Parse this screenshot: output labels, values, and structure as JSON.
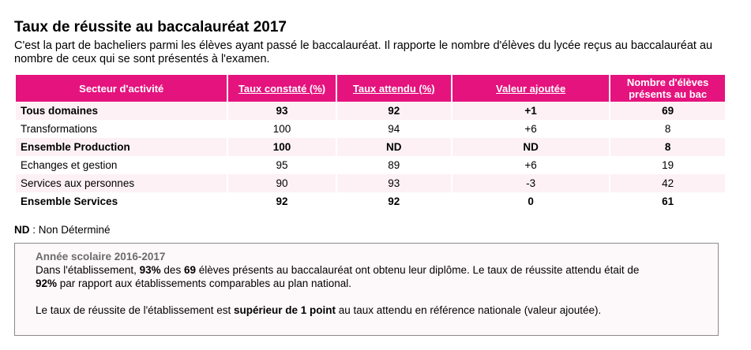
{
  "title": "Taux de réussite au baccalauréat 2017",
  "intro": "C'est la part de bacheliers parmi les élèves ayant passé le baccalauréat. Il rapporte le nombre d'élèves du lycée reçus au baccalauréat au nombre de ceux qui se sont présentés à l'examen.",
  "table": {
    "headers": {
      "sector": "Secteur d'activité",
      "rate_observed": "Taux constaté (%)",
      "rate_expected": "Taux attendu (%)",
      "added_value": "Valeur ajoutée",
      "students_line1": "Nombre d'élèves",
      "students_line2": "présents au bac"
    },
    "rows": [
      {
        "sector": "Tous domaines",
        "observed": "93",
        "expected": "92",
        "added": "+1",
        "students": "69"
      },
      {
        "sector": "Transformations",
        "observed": "100",
        "expected": "94",
        "added": "+6",
        "students": "8"
      },
      {
        "sector": "Ensemble Production",
        "observed": "100",
        "expected": "ND",
        "added": "ND",
        "students": "8"
      },
      {
        "sector": "Echanges et gestion",
        "observed": "95",
        "expected": "89",
        "added": "+6",
        "students": "19"
      },
      {
        "sector": "Services aux personnes",
        "observed": "90",
        "expected": "93",
        "added": "-3",
        "students": "42"
      },
      {
        "sector": "Ensemble Services",
        "observed": "92",
        "expected": "92",
        "added": "0",
        "students": "61"
      }
    ]
  },
  "legend": {
    "abbr": "ND",
    "text": " : Non Déterminé"
  },
  "info": {
    "year": "Année scolaire 2016-2017",
    "p1_a": "Dans l'établissement, ",
    "p1_rate": "93%",
    "p1_b": " des ",
    "p1_count": "69",
    "p1_c": " élèves présents au baccalauréat ont obtenu leur diplôme. Le taux de réussite attendu était de",
    "p1_expected": "92%",
    "p1_d": " par rapport aux établissements comparables au plan national.",
    "p2_a": "Le taux de réussite de l'établissement est ",
    "p2_b": "supérieur de 1 point",
    "p2_c": " au taux attendu en référence nationale (valeur ajoutée)."
  }
}
